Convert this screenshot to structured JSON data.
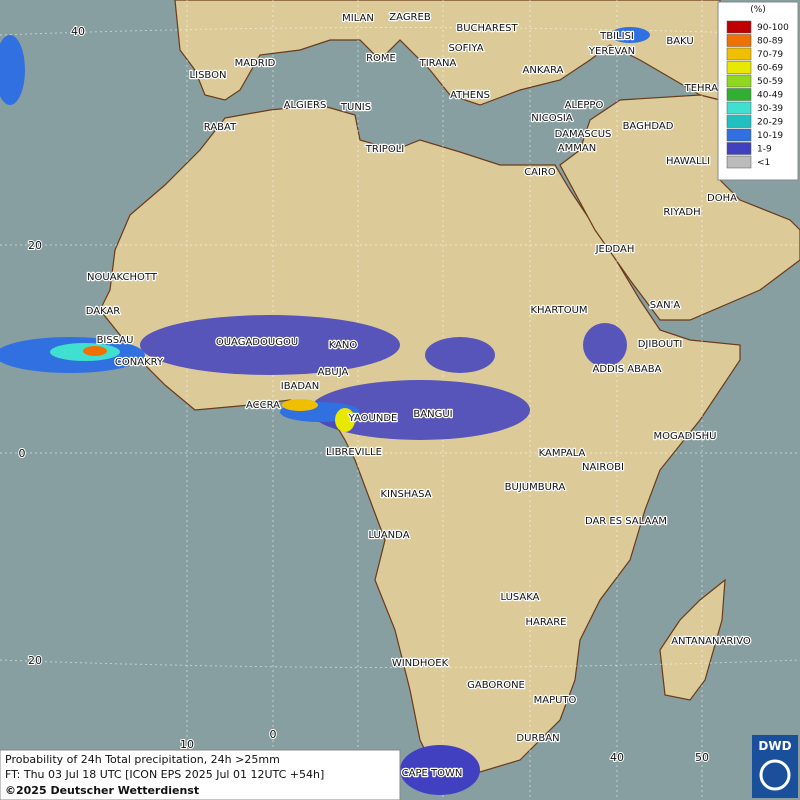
{
  "map": {
    "grid_labels": [
      "40",
      "20",
      "0",
      "20",
      "10",
      "0",
      "40",
      "50"
    ],
    "cities": [
      "MILAN",
      "ZAGREB",
      "BUCHAREST",
      "SOFIYA",
      "ROME",
      "TIRANA",
      "ANKARA",
      "TBILISI",
      "YEREVAN",
      "BAKU",
      "TEHRAN",
      "LISBON",
      "MADRID",
      "ALGIERS",
      "TUNIS",
      "ATHENS",
      "ALEPPO",
      "NICOSIA",
      "BAGHDAD",
      "DAMASCUS",
      "AMMAN",
      "RABAT",
      "TRIPOLI",
      "CAIRO",
      "HAWALLI",
      "DOHA",
      "RIYADH",
      "JEDDAH",
      "NOUAKCHOTT",
      "DAKAR",
      "KHARTOUM",
      "SAN'A",
      "BISSAU",
      "OUAGADOUGOU",
      "DJIBOUTI",
      "CONAKRY",
      "KANO",
      "ABUJA",
      "ADDIS ABABA",
      "IBADAN",
      "ACCRA",
      "YAOUNDE",
      "BANGUI",
      "MOGADISHU",
      "LIBREVILLE",
      "KAMPALA",
      "NAIROBI",
      "BUJUMBURA",
      "KINSHASA",
      "DAR ES SALAAM",
      "LUANDA",
      "LUSAKA",
      "HARARE",
      "ANTANANARIVO",
      "WINDHOEK",
      "GABORONE",
      "MAPUTO",
      "DURBAN",
      "CAPE TOWN"
    ]
  },
  "legend": {
    "unit": "(%)",
    "classes": [
      {
        "label": "90-100",
        "color": "#c00000"
      },
      {
        "label": "80-89",
        "color": "#f07000"
      },
      {
        "label": "70-79",
        "color": "#f0c000"
      },
      {
        "label": "60-69",
        "color": "#e8e800"
      },
      {
        "label": "50-59",
        "color": "#90d820"
      },
      {
        "label": "40-49",
        "color": "#30b030"
      },
      {
        "label": "30-39",
        "color": "#40e0d0"
      },
      {
        "label": "20-29",
        "color": "#20c0c0"
      },
      {
        "label": "10-19",
        "color": "#3070e0"
      },
      {
        "label": "1-9",
        "color": "#4040c0"
      },
      {
        "label": "<1",
        "color": "#bbbbbb"
      }
    ]
  },
  "footer": {
    "line1": "Probability of 24h Total precipitation, 24h >25mm",
    "line2": "FT: Thu 03 Jul 18 UTC [ICON EPS 2025 Jul 01 12UTC +54h]",
    "copyright": "©2025 Deutscher Wetterdienst"
  },
  "logo": "DWD"
}
